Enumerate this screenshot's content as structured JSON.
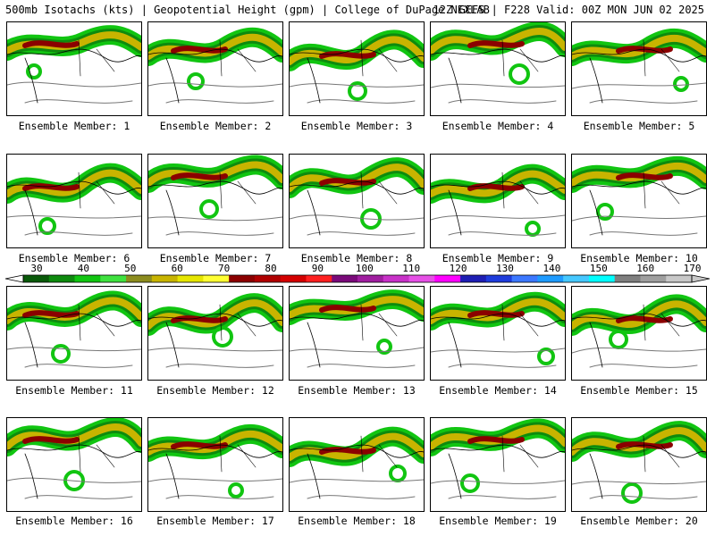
{
  "header": {
    "title": "500mb Isotachs (kts) | Geopotential Height (gpm) | College of DuPage NEXLAB",
    "model": "12Z GEFS",
    "forecast": "F228 Valid: 00Z MON JUN 02 2025"
  },
  "panels": [
    {
      "caption": "Ensemble Member: 1"
    },
    {
      "caption": "Ensemble Member: 2"
    },
    {
      "caption": "Ensemble Member: 3"
    },
    {
      "caption": "Ensemble Member: 4"
    },
    {
      "caption": "Ensemble Member: 5"
    },
    {
      "caption": "Ensemble Member: 6"
    },
    {
      "caption": "Ensemble Member: 7"
    },
    {
      "caption": "Ensemble Member: 8"
    },
    {
      "caption": "Ensemble Member: 9"
    },
    {
      "caption": "Ensemble Member: 10"
    },
    {
      "caption": "Ensemble Member: 11"
    },
    {
      "caption": "Ensemble Member: 12"
    },
    {
      "caption": "Ensemble Member: 13"
    },
    {
      "caption": "Ensemble Member: 14"
    },
    {
      "caption": "Ensemble Member: 15"
    },
    {
      "caption": "Ensemble Member: 16"
    },
    {
      "caption": "Ensemble Member: 17"
    },
    {
      "caption": "Ensemble Member: 18"
    },
    {
      "caption": "Ensemble Member: 19"
    },
    {
      "caption": "Ensemble Member: 20"
    }
  ],
  "colorbar": {
    "ticks": [
      "30",
      "40",
      "50",
      "60",
      "70",
      "80",
      "90",
      "100",
      "110",
      "120",
      "130",
      "140",
      "150",
      "160",
      "170"
    ],
    "colors": [
      "#0a5a0a",
      "#0e8a0e",
      "#11c511",
      "#3fe13f",
      "#8c8c1e",
      "#c8b400",
      "#e6e600",
      "#ffff33",
      "#8b0000",
      "#b00000",
      "#d40000",
      "#ff2020",
      "#7a0a7a",
      "#a01ea0",
      "#c832c8",
      "#e650e6",
      "#ff00ff",
      "#1e1eb4",
      "#1e3cdc",
      "#3c78ff",
      "#1e9bff",
      "#46c8ff",
      "#00ffff",
      "#7f7f7f",
      "#9f9f9f",
      "#c8c8c8"
    ]
  }
}
